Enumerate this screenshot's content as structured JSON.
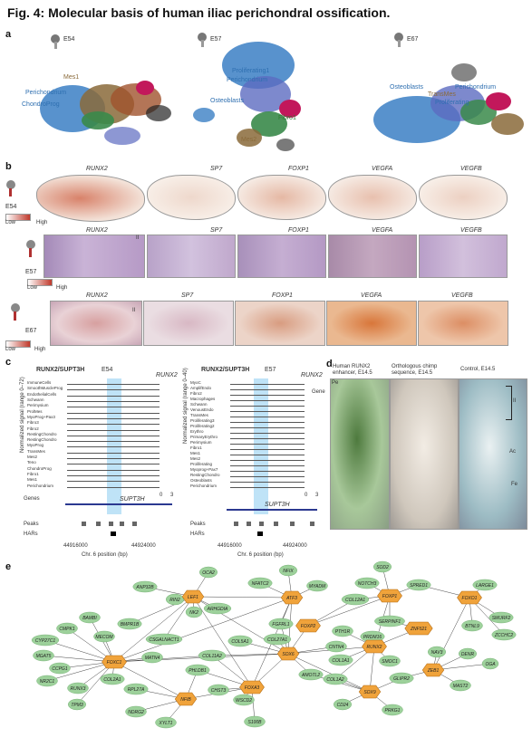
{
  "figure": {
    "title": "Fig. 4: Molecular basis of human iliac perichondral ossification."
  },
  "panel_a": {
    "label": "a",
    "stages": [
      "E54",
      "E57",
      "E67"
    ],
    "e54_labels": [
      "Mes1",
      "Perichondrium",
      "ChondroProg"
    ],
    "e57_labels": [
      "Proliferating1",
      "Perichondrium",
      "Osteoblasts",
      "Fibro1",
      "Mes2"
    ],
    "e67_labels": [
      "Osteoblasts",
      "TransMes",
      "Proliferating",
      "Perichondrium"
    ]
  },
  "panel_b": {
    "label": "b",
    "genes": [
      "RUNX2",
      "SP7",
      "FOXP1",
      "VEGFA",
      "VEGFB"
    ],
    "stages": [
      "E54",
      "E57",
      "E67"
    ],
    "legend_low": "Low",
    "legend_high": "High",
    "roman": "II"
  },
  "panel_c": {
    "label": "c",
    "left_title": "RUNX2/SUPT3H",
    "left_stage": "E54",
    "right_title": "RUNX2/SUPT3H",
    "right_stage": "E57",
    "gene_tag": "RUNX2",
    "gene_below": "SUPT3H",
    "left_ylabel": "Normalized signal (range 0–72)",
    "right_ylabel": "Normalized signal (range 0–40)",
    "left_tracks": [
      "ImmuneCells",
      "SmoothMuscleProg",
      "EndothelialCells",
      "Schwann",
      "Perimysium",
      "ProlMes",
      "MyoProg+Pax3",
      "Fibro3",
      "Fibro2",
      "RestingChondro",
      "RestingChondro",
      "MyoProg",
      "TransMes",
      "Mes2",
      "Teno",
      "ChondroProg",
      "Fibro1",
      "Mes1",
      "Perichondrium"
    ],
    "right_tracks": [
      "MyoC",
      "AmplifEndo",
      "Fibro2",
      "Macrophages",
      "Schwann",
      "VenousEndo",
      "TransMes",
      "Proliferating3",
      "Proliferating2",
      "Erythro",
      "PrimaryErythro",
      "Perimysium",
      "Fibro1",
      "Mes1",
      "Mes2",
      "Proliferating",
      "Myoprog+Pax7",
      "RestingChondro",
      "Osteoblasts",
      "Perichondrium"
    ],
    "side_label_genes": "Genes",
    "side_label_gene": "Gene",
    "axis_0": "0",
    "axis_3": "3",
    "row_peaks": "Peaks",
    "row_hars": "HARs",
    "left_ticks": [
      "44916000",
      "44924000"
    ],
    "right_ticks": [
      "44916000",
      "44924000"
    ],
    "xlabel": "Chr. 6 position (bp)"
  },
  "panel_d": {
    "label": "d",
    "col1_title": "Human RUNX2 enhancer, E14.5",
    "col2_title": "Orthologous chimp sequence, E14.5",
    "col3_title": "Control, E14.5",
    "marks": [
      "Pe",
      "II",
      "Ac",
      "Fe"
    ]
  },
  "panel_e": {
    "label": "e",
    "hubs": [
      {
        "id": "LEF1",
        "label": "LEF1"
      },
      {
        "id": "ATF3",
        "label": "ATF3"
      },
      {
        "id": "FOXP2",
        "label": "FOXP2"
      },
      {
        "id": "FOXP1",
        "label": "FOXP1"
      },
      {
        "id": "FOXO1",
        "label": "FOXO1"
      },
      {
        "id": "FOXC1",
        "label": "FOXC1"
      },
      {
        "id": "SOX6",
        "label": "SOX6"
      },
      {
        "id": "RUNX2",
        "label": "RUNX2"
      },
      {
        "id": "ZEB1",
        "label": "ZEB1"
      },
      {
        "id": "ZNF521",
        "label": "ZNF521"
      },
      {
        "id": "NFIB",
        "label": "NFIB"
      },
      {
        "id": "FOXA3",
        "label": "FOXA3"
      },
      {
        "id": "SOX9",
        "label": "SOX9"
      }
    ],
    "targets": [
      {
        "id": "ANP32B",
        "label": "ANP32B"
      },
      {
        "id": "OCA2",
        "label": "OCA2"
      },
      {
        "id": "NFIX",
        "label": "NFIX"
      },
      {
        "id": "SOD2",
        "label": "SOD2"
      },
      {
        "id": "NR2",
        "label": "RIN2"
      },
      {
        "id": "NK2",
        "label": "NK2"
      },
      {
        "id": "NFATC2",
        "label": "NFATC2"
      },
      {
        "id": "MYADM",
        "label": "MYADM"
      },
      {
        "id": "NOTCH3",
        "label": "NOTCH3"
      },
      {
        "id": "SPRED1",
        "label": "SPRED1"
      },
      {
        "id": "ARHGDIA",
        "label": "ARHGDIA"
      },
      {
        "id": "COL12A1",
        "label": "COL12A1"
      },
      {
        "id": "LARGE1",
        "label": "LARGE1"
      },
      {
        "id": "BAMBI",
        "label": "BAMBI"
      },
      {
        "id": "BMPR1B",
        "label": "BMPR1B"
      },
      {
        "id": "CMPK1",
        "label": "CMPK1"
      },
      {
        "id": "MECOM",
        "label": "MECOM"
      },
      {
        "id": "CYP27C1",
        "label": "CYP27C1"
      },
      {
        "id": "CSGALNACT1",
        "label": "CSGALNACT1"
      },
      {
        "id": "FGFRL1",
        "label": "FGFRL1"
      },
      {
        "id": "PTH1R",
        "label": "PTH1R"
      },
      {
        "id": "SERPINF1",
        "label": "SERPINF1"
      },
      {
        "id": "SMURF2",
        "label": "SMURF2"
      },
      {
        "id": "MGAT5",
        "label": "MGAT5"
      },
      {
        "id": "CCPG1",
        "label": "CCPG1"
      },
      {
        "id": "PRDM16",
        "label": "PRDM16"
      },
      {
        "id": "BTNL9",
        "label": "BTNL9"
      },
      {
        "id": "ZCCHC2",
        "label": "ZCCHC2"
      },
      {
        "id": "COL5A1",
        "label": "COL5A1"
      },
      {
        "id": "COL27A1",
        "label": "COL27A1"
      },
      {
        "id": "CNTN4",
        "label": "CNTN4"
      },
      {
        "id": "NAV3",
        "label": "NAV3"
      },
      {
        "id": "DENR",
        "label": "DENR"
      },
      {
        "id": "NR2C1",
        "label": "NR2C1"
      },
      {
        "id": "RUNX3",
        "label": "RUNX3"
      },
      {
        "id": "MATN4",
        "label": "MATN4"
      },
      {
        "id": "COL11A2",
        "label": "COL11A2"
      },
      {
        "id": "COL1A1",
        "label": "COL1A1"
      },
      {
        "id": "OGA",
        "label": "OGA"
      },
      {
        "id": "TPM3",
        "label": "TPM3"
      },
      {
        "id": "COL2A1",
        "label": "COL2A1"
      },
      {
        "id": "PHLDB1",
        "label": "PHLDB1"
      },
      {
        "id": "AMOTL2",
        "label": "AMOTL2"
      },
      {
        "id": "COL1A2",
        "label": "COL1A2"
      },
      {
        "id": "SMOC1",
        "label": "SMOC1"
      },
      {
        "id": "RPL27A",
        "label": "RPL27A"
      },
      {
        "id": "CHST3",
        "label": "CHST3"
      },
      {
        "id": "GLIPR2",
        "label": "GLIPR2"
      },
      {
        "id": "MAST2",
        "label": "MAST2"
      },
      {
        "id": "NDRG2",
        "label": "NDRG2"
      },
      {
        "id": "XYLT1",
        "label": "XYLT1"
      },
      {
        "id": "WSCD2",
        "label": "WSCD2"
      },
      {
        "id": "CD24",
        "label": "CD24"
      },
      {
        "id": "PRKG1",
        "label": "PRKG1"
      },
      {
        "id": "S100B",
        "label": "S100B"
      }
    ]
  }
}
